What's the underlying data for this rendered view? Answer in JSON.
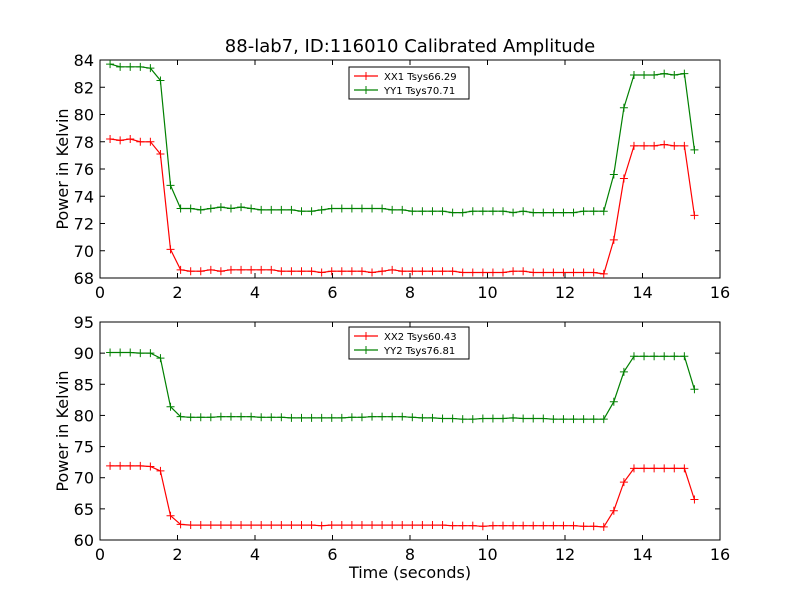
{
  "figure": {
    "title": "88-lab7, ID:116010 Calibrated Amplitude"
  },
  "chart_data": [
    {
      "type": "line",
      "title": "88-lab7, ID:116010 Calibrated Amplitude",
      "xlabel": "",
      "ylabel": "Power in Kelvin",
      "xlim": [
        0,
        16
      ],
      "ylim": [
        68,
        84
      ],
      "xticks": [
        0,
        2,
        4,
        6,
        8,
        10,
        12,
        14,
        16
      ],
      "yticks": [
        68,
        70,
        72,
        74,
        76,
        78,
        80,
        82,
        84
      ],
      "grid": false,
      "legend_position": "top-center",
      "x": [
        0.26,
        0.52,
        0.78,
        1.04,
        1.3,
        1.56,
        1.82,
        2.08,
        2.34,
        2.6,
        2.86,
        3.12,
        3.38,
        3.64,
        3.9,
        4.16,
        4.42,
        4.68,
        4.94,
        5.2,
        5.46,
        5.72,
        5.98,
        6.24,
        6.5,
        6.76,
        7.02,
        7.28,
        7.54,
        7.8,
        8.06,
        8.32,
        8.58,
        8.84,
        9.1,
        9.36,
        9.62,
        9.88,
        10.14,
        10.4,
        10.66,
        10.92,
        11.18,
        11.44,
        11.7,
        11.96,
        12.22,
        12.48,
        12.74,
        13.0,
        13.26,
        13.52,
        13.78,
        14.04,
        14.3,
        14.56,
        14.82,
        15.08,
        15.34
      ],
      "series": [
        {
          "name": "XX1 Tsys66.29",
          "color": "#ff0000",
          "values": [
            78.2,
            78.1,
            78.2,
            78.0,
            78.0,
            77.1,
            70.1,
            68.6,
            68.5,
            68.5,
            68.6,
            68.5,
            68.6,
            68.6,
            68.6,
            68.6,
            68.6,
            68.5,
            68.5,
            68.5,
            68.5,
            68.4,
            68.5,
            68.5,
            68.5,
            68.5,
            68.4,
            68.5,
            68.6,
            68.5,
            68.5,
            68.5,
            68.5,
            68.5,
            68.5,
            68.4,
            68.4,
            68.4,
            68.4,
            68.4,
            68.5,
            68.5,
            68.4,
            68.4,
            68.4,
            68.4,
            68.4,
            68.4,
            68.4,
            68.3,
            70.8,
            75.3,
            77.7,
            77.7,
            77.7,
            77.8,
            77.7,
            77.7,
            72.6
          ]
        },
        {
          "name": "YY1 Tsys70.71",
          "color": "#008000",
          "values": [
            83.7,
            83.5,
            83.5,
            83.5,
            83.4,
            82.5,
            74.8,
            73.1,
            73.1,
            73.0,
            73.1,
            73.2,
            73.1,
            73.2,
            73.1,
            73.0,
            73.0,
            73.0,
            73.0,
            72.9,
            72.9,
            73.0,
            73.1,
            73.1,
            73.1,
            73.1,
            73.1,
            73.1,
            73.0,
            73.0,
            72.9,
            72.9,
            72.9,
            72.9,
            72.8,
            72.8,
            72.9,
            72.9,
            72.9,
            72.9,
            72.8,
            72.9,
            72.8,
            72.8,
            72.8,
            72.8,
            72.8,
            72.9,
            72.9,
            72.9,
            75.6,
            80.5,
            82.9,
            82.9,
            82.9,
            83.0,
            82.9,
            83.0,
            77.4
          ]
        }
      ]
    },
    {
      "type": "line",
      "title": "",
      "xlabel": "Time (seconds)",
      "ylabel": "Power in Kelvin",
      "xlim": [
        0,
        16
      ],
      "ylim": [
        60,
        95
      ],
      "xticks": [
        0,
        2,
        4,
        6,
        8,
        10,
        12,
        14,
        16
      ],
      "yticks": [
        60,
        65,
        70,
        75,
        80,
        85,
        90,
        95
      ],
      "grid": false,
      "legend_position": "top-center",
      "x": [
        0.26,
        0.52,
        0.78,
        1.04,
        1.3,
        1.56,
        1.82,
        2.08,
        2.34,
        2.6,
        2.86,
        3.12,
        3.38,
        3.64,
        3.9,
        4.16,
        4.42,
        4.68,
        4.94,
        5.2,
        5.46,
        5.72,
        5.98,
        6.24,
        6.5,
        6.76,
        7.02,
        7.28,
        7.54,
        7.8,
        8.06,
        8.32,
        8.58,
        8.84,
        9.1,
        9.36,
        9.62,
        9.88,
        10.14,
        10.4,
        10.66,
        10.92,
        11.18,
        11.44,
        11.7,
        11.96,
        12.22,
        12.48,
        12.74,
        13.0,
        13.26,
        13.52,
        13.78,
        14.04,
        14.3,
        14.56,
        14.82,
        15.08,
        15.34
      ],
      "series": [
        {
          "name": "XX2 Tsys60.43",
          "color": "#ff0000",
          "values": [
            71.9,
            71.9,
            71.9,
            71.9,
            71.8,
            71.1,
            63.9,
            62.5,
            62.4,
            62.4,
            62.4,
            62.4,
            62.4,
            62.4,
            62.4,
            62.4,
            62.4,
            62.4,
            62.4,
            62.4,
            62.4,
            62.3,
            62.4,
            62.4,
            62.4,
            62.4,
            62.4,
            62.4,
            62.4,
            62.4,
            62.4,
            62.4,
            62.4,
            62.4,
            62.3,
            62.3,
            62.3,
            62.2,
            62.3,
            62.3,
            62.3,
            62.3,
            62.3,
            62.3,
            62.3,
            62.3,
            62.3,
            62.2,
            62.2,
            62.1,
            64.7,
            69.3,
            71.5,
            71.5,
            71.5,
            71.5,
            71.5,
            71.5,
            66.5
          ]
        },
        {
          "name": "YY2 Tsys76.81",
          "color": "#008000",
          "values": [
            90.1,
            90.1,
            90.1,
            90.0,
            90.0,
            89.2,
            81.4,
            79.8,
            79.7,
            79.7,
            79.7,
            79.8,
            79.8,
            79.8,
            79.8,
            79.7,
            79.7,
            79.7,
            79.6,
            79.6,
            79.6,
            79.6,
            79.6,
            79.6,
            79.7,
            79.7,
            79.8,
            79.8,
            79.8,
            79.8,
            79.7,
            79.6,
            79.6,
            79.5,
            79.5,
            79.4,
            79.4,
            79.5,
            79.5,
            79.5,
            79.6,
            79.5,
            79.5,
            79.5,
            79.4,
            79.4,
            79.4,
            79.4,
            79.4,
            79.4,
            82.2,
            87.0,
            89.5,
            89.5,
            89.5,
            89.5,
            89.5,
            89.5,
            84.2
          ]
        }
      ]
    }
  ]
}
